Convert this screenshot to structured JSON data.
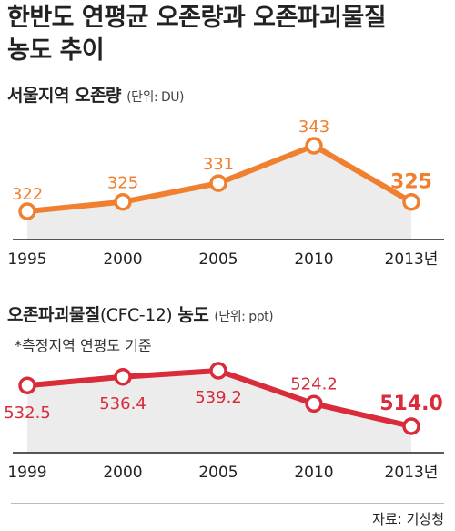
{
  "title_line1": "한반도 연평균 오존량과 오존파괴물질",
  "title_line2": "농도 추이",
  "chart1_title": "서울지역 오존량",
  "chart1_unit": "(단위: DU)",
  "chart2_title": "오존파괴물질",
  "chart2_title_mid": "(CFC-12)",
  "chart2_title_end": " 농도",
  "chart2_unit": "(단위: ppt)",
  "chart2_note": "*측정지역 연평도 기준",
  "source": "자료: 기상청",
  "colors": {
    "ozone": "#f08030",
    "cfc": "#d92b3a",
    "area": "#ececec"
  },
  "chart_data": [
    {
      "type": "line",
      "categories": [
        "1995",
        "2000",
        "2005",
        "2010",
        "2013년"
      ],
      "values": [
        322,
        325,
        331,
        343,
        325
      ],
      "labels": [
        "322",
        "325",
        "331",
        "343",
        "325"
      ]
    },
    {
      "type": "line",
      "categories": [
        "1999",
        "2000",
        "2005",
        "2010",
        "2013년"
      ],
      "values": [
        532.5,
        536.4,
        539.2,
        524.2,
        514.0
      ],
      "labels": [
        "532.5",
        "536.4",
        "539.2",
        "524.2",
        "514.0"
      ]
    }
  ]
}
